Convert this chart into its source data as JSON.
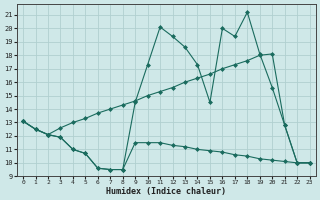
{
  "xlabel": "Humidex (Indice chaleur)",
  "bg_color": "#cfe8e8",
  "grid_color": "#b0d0d0",
  "line_color": "#1a6b5e",
  "xlim": [
    -0.5,
    23.5
  ],
  "ylim": [
    9,
    21.8
  ],
  "yticks": [
    9,
    10,
    11,
    12,
    13,
    14,
    15,
    16,
    17,
    18,
    19,
    20,
    21
  ],
  "xticks": [
    0,
    1,
    2,
    3,
    4,
    5,
    6,
    7,
    8,
    9,
    10,
    11,
    12,
    13,
    14,
    15,
    16,
    17,
    18,
    19,
    20,
    21,
    22,
    23
  ],
  "s1_x": [
    0,
    1,
    2,
    3,
    4,
    5,
    6,
    7,
    8,
    9,
    10,
    11,
    12,
    13,
    14,
    15,
    16,
    17,
    18,
    19,
    20,
    21,
    22,
    23
  ],
  "s1_y": [
    13.1,
    12.5,
    12.1,
    11.9,
    11.0,
    10.7,
    9.6,
    9.5,
    9.5,
    14.5,
    17.3,
    20.1,
    19.4,
    18.6,
    17.3,
    14.5,
    20.0,
    19.4,
    21.2,
    18.1,
    15.6,
    12.8,
    10.0,
    10.0
  ],
  "s2_x": [
    0,
    1,
    2,
    3,
    4,
    5,
    6,
    7,
    8,
    9,
    10,
    11,
    12,
    13,
    14,
    15,
    16,
    17,
    18,
    19,
    20,
    21,
    22,
    23
  ],
  "s2_y": [
    13.1,
    12.5,
    12.1,
    12.6,
    13.0,
    13.3,
    13.7,
    14.0,
    14.3,
    14.6,
    15.0,
    15.3,
    15.6,
    16.0,
    16.3,
    16.6,
    17.0,
    17.3,
    17.6,
    18.0,
    18.1,
    12.8,
    10.0,
    10.0
  ],
  "s3_x": [
    0,
    1,
    2,
    3,
    4,
    5,
    6,
    7,
    8,
    9,
    10,
    11,
    12,
    13,
    14,
    15,
    16,
    17,
    18,
    19,
    20,
    21,
    22,
    23
  ],
  "s3_y": [
    13.1,
    12.5,
    12.1,
    11.9,
    11.0,
    10.7,
    9.6,
    9.5,
    9.5,
    11.5,
    11.5,
    11.5,
    11.3,
    11.2,
    11.0,
    10.9,
    10.8,
    10.6,
    10.5,
    10.3,
    10.2,
    10.1,
    10.0,
    10.0
  ]
}
